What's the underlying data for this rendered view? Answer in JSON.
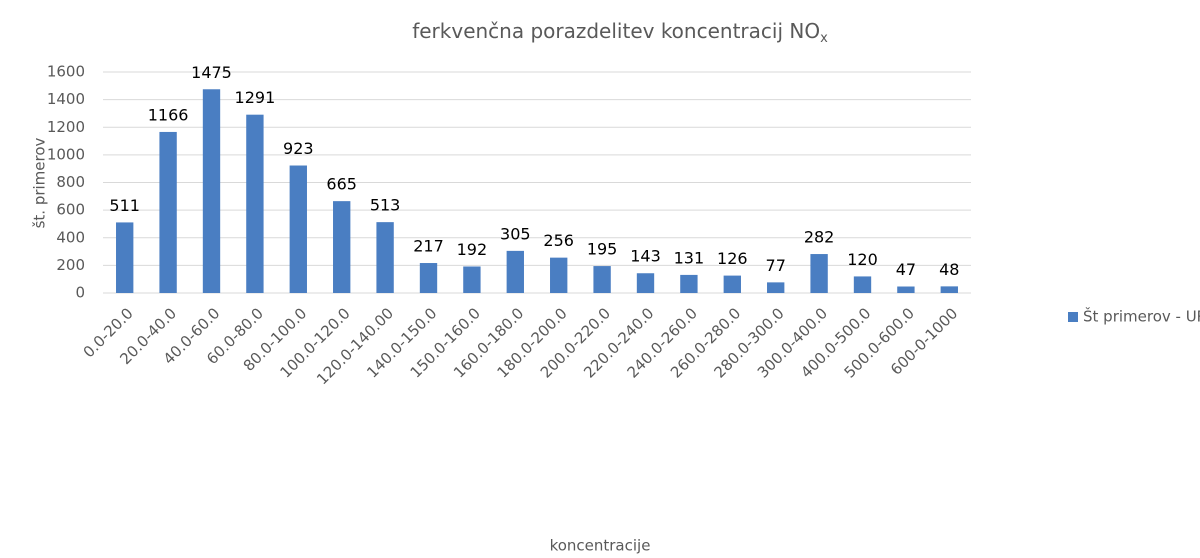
{
  "chart_data": {
    "type": "bar",
    "title": "ferkvenčna porazdelitev koncentracij NO",
    "title_subscript": "x",
    "xlabel": "koncentracije",
    "ylabel": "št. primerov",
    "categories": [
      "0.0-20.0",
      "20.0-40.0",
      "40.0-60.0",
      "60.0-80.0",
      "80.0-100.0",
      "100.0-120.0",
      "120.0-140.00",
      "140.0-150.0",
      "150.0-160.0",
      "160.0-180.0",
      "180.0-200.0",
      "200.0-220.0",
      "220.0-240.0",
      "240.0-260.0",
      "260.0-280.0",
      "280.0-300.0",
      "300.0-400.0",
      "400.0-500.0",
      "500.0-600.0",
      "600-0-1000"
    ],
    "series": [
      {
        "name": "Št primerov - URA",
        "color": "#4a7ec2",
        "values": [
          511,
          1166,
          1475,
          1291,
          923,
          665,
          513,
          217,
          192,
          305,
          256,
          195,
          143,
          131,
          126,
          77,
          282,
          120,
          47,
          48
        ]
      }
    ],
    "ylim": [
      0,
      1600
    ],
    "yticks": [
      0,
      200,
      400,
      600,
      800,
      1000,
      1200,
      1400,
      1600
    ],
    "grid": true,
    "legend": "right"
  }
}
